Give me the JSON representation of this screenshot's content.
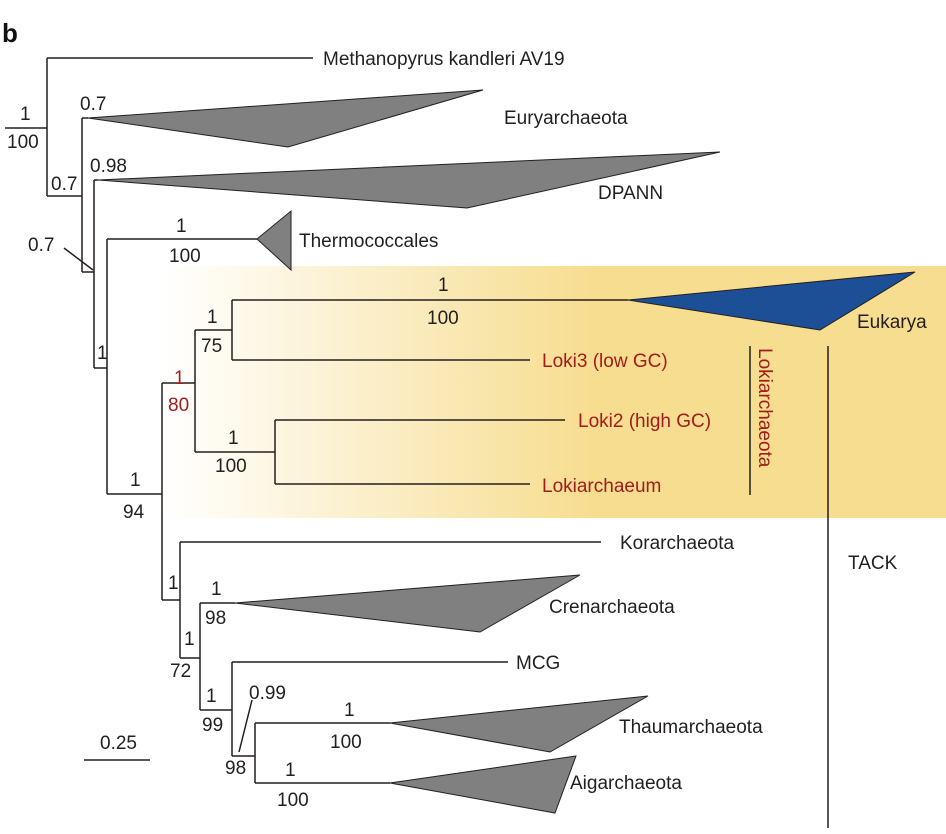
{
  "panel_label": "b",
  "colors": {
    "highlight_gradient_start": "#ffffff",
    "highlight_gradient_end": "#f7dd8f",
    "clade_gray": "#808080",
    "eukarya_blue": "#1c4f96",
    "asgard_red": "#a11d1d",
    "branch": "#231f20"
  },
  "scale_bar": {
    "label": "0.25"
  },
  "taxa": {
    "methanopyrus": "Methanopyrus kandleri AV19",
    "euryarchaeota": "Euryarchaeota",
    "dpann": "DPANN",
    "thermococcales": "Thermococcales",
    "eukarya": "Eukarya",
    "loki3": "Loki3 (low GC)",
    "loki2": "Loki2 (high GC)",
    "lokiarchaeum": "Lokiarchaeum",
    "korarchaeota": "Korarchaeota",
    "crenarchaeota": "Crenarchaeota",
    "mcg": "MCG",
    "thaumarchaeota": "Thaumarchaeota",
    "aigarchaeota": "Aigarchaeota"
  },
  "groups": {
    "lokiarchaeota": "Lokiarchaeota",
    "tack": "TACK"
  },
  "support": {
    "root_pp": "1",
    "root_bs": "100",
    "eury_pp": "0.7",
    "n2_pp": "0.7",
    "dpann_pp": "0.98",
    "n3_pp": "0.7",
    "n4_pp": "1",
    "thermo_pp": "1",
    "thermo_bs": "100",
    "tack_euk_pp": "1",
    "tack_euk_bs": "94",
    "loki_euk_pp": "1",
    "loki_euk_bs": "80",
    "euk_loki3_pp": "1",
    "euk_loki3_bs": "75",
    "eukarya_pp": "1",
    "eukarya_bs": "100",
    "loki2_pp": "1",
    "loki2_bs": "100",
    "tack_core_pp": "1",
    "cren_pp": "1",
    "cren_bs": "98",
    "n10_pp": "1",
    "n10_bs": "72",
    "n11_pp": "1",
    "n11_bs": "99",
    "thaum_aig_pp": "0.99",
    "thaum_aig_bs": "98",
    "thaum_pp": "1",
    "thaum_bs": "100",
    "aig_pp": "1",
    "aig_bs": "100"
  }
}
